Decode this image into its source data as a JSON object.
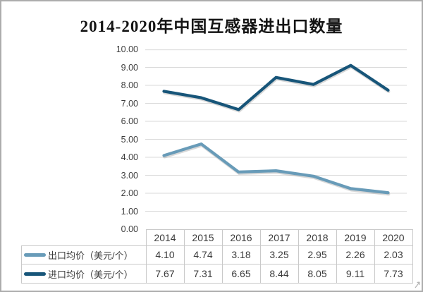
{
  "chart_data": {
    "type": "line",
    "title": "2014-2020年中国互感器进出口数量",
    "categories": [
      "2014",
      "2015",
      "2016",
      "2017",
      "2018",
      "2019",
      "2020"
    ],
    "series": [
      {
        "name": "出口均价（美元/个）",
        "values": [
          4.1,
          4.74,
          3.18,
          3.25,
          2.95,
          2.26,
          2.03
        ],
        "color": "#689BB8"
      },
      {
        "name": "进口均价（美元/个）",
        "values": [
          7.67,
          7.31,
          6.65,
          8.44,
          8.05,
          9.11,
          7.73
        ],
        "color": "#175579"
      }
    ],
    "ylim": [
      0,
      10
    ],
    "ytick_step": 1,
    "ytick_labels": [
      "0.00",
      "1.00",
      "2.00",
      "3.00",
      "4.00",
      "5.00",
      "6.00",
      "7.00",
      "8.00",
      "9.00",
      "10.00"
    ],
    "grid": true,
    "legend_position": "data-table-left",
    "value_decimals": 2
  },
  "colors": {
    "export_line": "#689BB8",
    "import_line": "#175579",
    "grid": "#D9D9D9",
    "table_border": "#C9C9C9",
    "text": "#3C3C3C",
    "frame_border": "#ACACAC",
    "title_text": "#141414"
  }
}
